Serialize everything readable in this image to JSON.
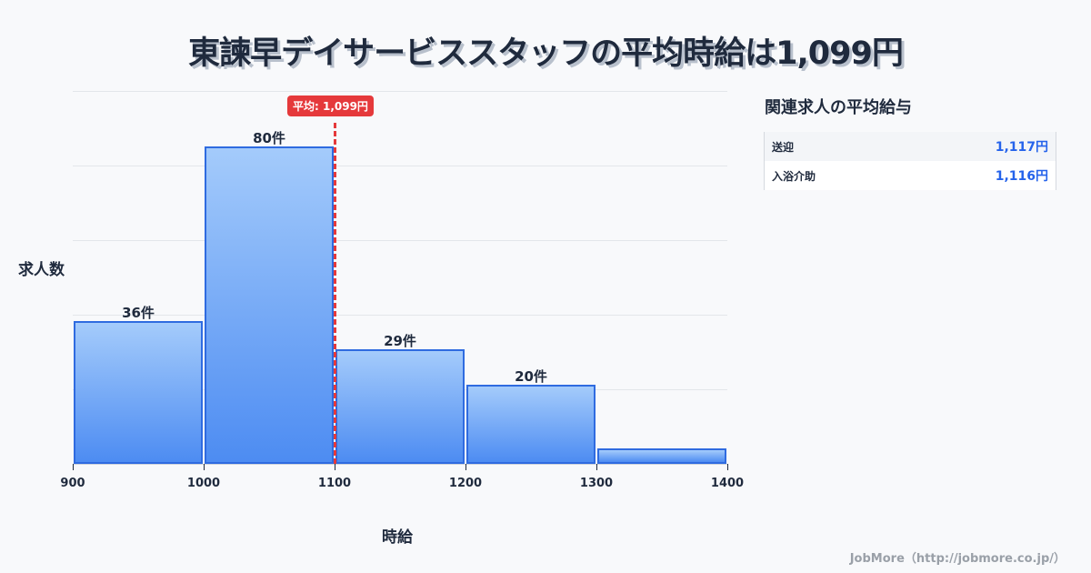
{
  "title": "東諫早デイサービススタッフの平均時給は1,099円",
  "chart_data": {
    "type": "bar",
    "title": "東諫早デイサービススタッフの平均時給は1,099円",
    "xlabel": "時給",
    "ylabel": "求人数",
    "bins": [
      [
        900,
        1000
      ],
      [
        1000,
        1100
      ],
      [
        1100,
        1200
      ],
      [
        1200,
        1300
      ],
      [
        1300,
        1400
      ]
    ],
    "categories": [
      "900-1000",
      "1000-1100",
      "1100-1200",
      "1200-1300",
      "1300-1400"
    ],
    "values": [
      36,
      80,
      29,
      20,
      4
    ],
    "value_labels": [
      "36件",
      "80件",
      "29件",
      "20件",
      ""
    ],
    "x_ticks": [
      "900",
      "1000",
      "1100",
      "1200",
      "1300",
      "1400"
    ],
    "ylim": [
      0,
      94
    ],
    "grid": true,
    "average": {
      "value": 1099,
      "label": "平均: 1,099円",
      "color": "#e5393b"
    },
    "bar_color": "#4d8cf2",
    "bar_border_color": "#2f6be0"
  },
  "sidebar": {
    "title": "関連求人の平均給与",
    "rows": [
      {
        "name": "送迎",
        "value": "1,117円"
      },
      {
        "name": "入浴介助",
        "value": "1,116円"
      }
    ]
  },
  "footer": "JobMore（http://jobmore.co.jp/）"
}
